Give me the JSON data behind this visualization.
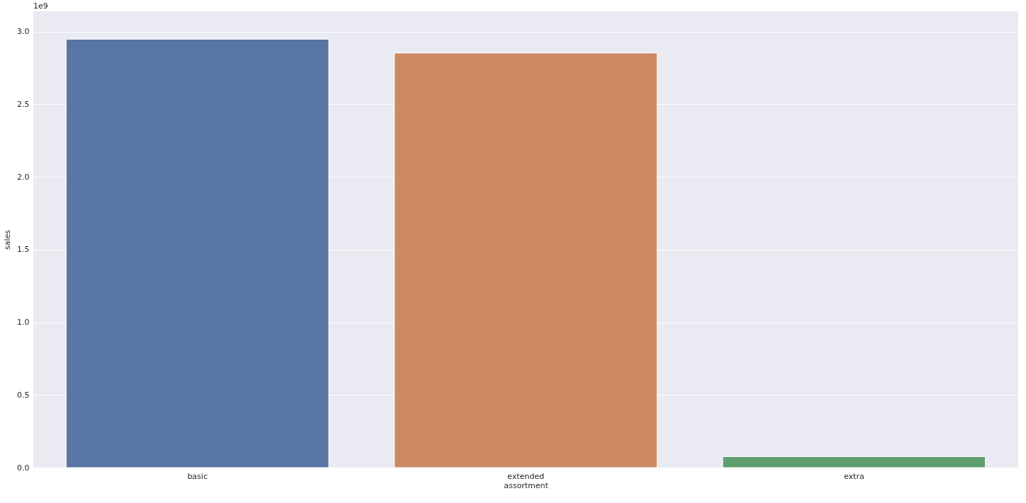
{
  "chart_data": {
    "type": "bar",
    "xlabel": "assortment",
    "ylabel": "sales",
    "categories": [
      "basic",
      "extended",
      "extra"
    ],
    "values": [
      2.948,
      2.853,
      0.076
    ],
    "colors": [
      "#5975a4",
      "#cc8963",
      "#5f9e6e"
    ],
    "ylim": [
      0,
      3.14
    ],
    "yticks": [
      {
        "value": 0,
        "label": "0.0"
      },
      {
        "value": 0.5,
        "label": "0.5"
      },
      {
        "value": 1,
        "label": "1.0"
      },
      {
        "value": 1.5,
        "label": "1.5"
      },
      {
        "value": 2,
        "label": "2.0"
      },
      {
        "value": 2.5,
        "label": "2.5"
      },
      {
        "value": 3,
        "label": "3.0"
      }
    ],
    "grid": "y",
    "annotations": [
      "1e9"
    ]
  }
}
